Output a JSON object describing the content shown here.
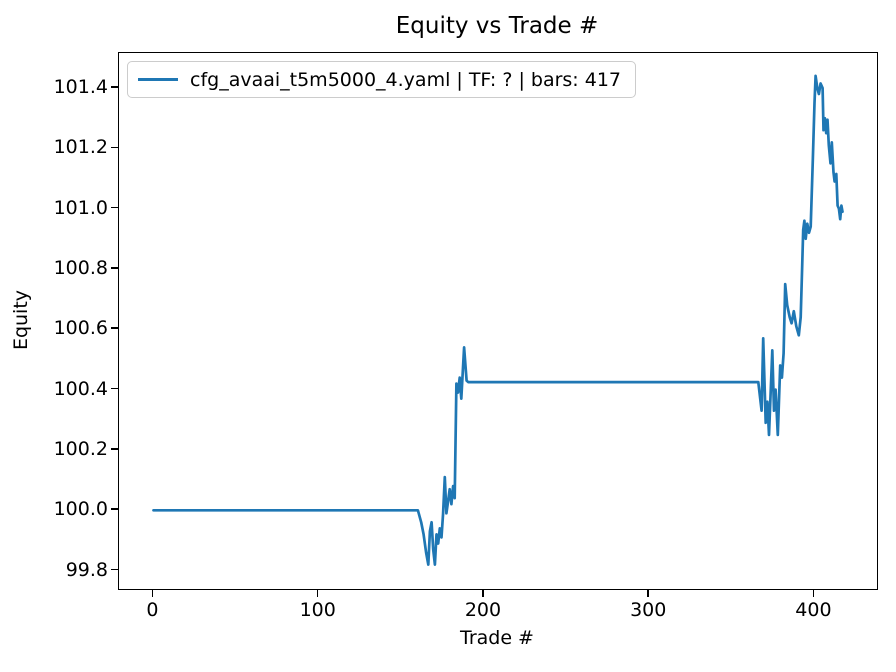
{
  "chart_data": {
    "type": "line",
    "title": "Equity vs Trade #",
    "xlabel": "Trade #",
    "ylabel": "Equity",
    "legend": [
      "cfg_avaai_t5m5000_4.yaml | TF: ? | bars: 417"
    ],
    "legend_position": "upper left",
    "grid": false,
    "line_color": "#1f77b4",
    "xlim": [
      -20.85,
      437.85
    ],
    "ylim": [
      99.739,
      101.516
    ],
    "xticks": [
      0,
      100,
      200,
      300,
      400
    ],
    "xtick_labels": [
      "0",
      "100",
      "200",
      "300",
      "400"
    ],
    "yticks": [
      99.8,
      100.0,
      100.2,
      100.4,
      100.6,
      100.8,
      101.0,
      101.2,
      101.4
    ],
    "ytick_labels": [
      "99.8",
      "100.0",
      "100.2",
      "100.4",
      "100.6",
      "100.8",
      "101.0",
      "101.2",
      "101.4"
    ],
    "series": [
      {
        "name": "cfg_avaai_t5m5000_4.yaml | TF: ? | bars: 417",
        "color": "#1f77b4",
        "points": [
          [
            0,
            100.0
          ],
          [
            160,
            100.0
          ],
          [
            162,
            99.96
          ],
          [
            163.5,
            99.92
          ],
          [
            165,
            99.86
          ],
          [
            166.3,
            99.82
          ],
          [
            167.3,
            99.93
          ],
          [
            168.3,
            99.96
          ],
          [
            169.3,
            99.87
          ],
          [
            170.3,
            99.82
          ],
          [
            171.3,
            99.92
          ],
          [
            172.3,
            99.89
          ],
          [
            173.3,
            99.94
          ],
          [
            174.3,
            99.91
          ],
          [
            175.3,
            99.99
          ],
          [
            176.3,
            100.11
          ],
          [
            177.3,
            99.99
          ],
          [
            178.3,
            100.03
          ],
          [
            179.3,
            100.07
          ],
          [
            180.3,
            100.02
          ],
          [
            181.3,
            100.08
          ],
          [
            182.3,
            100.04
          ],
          [
            183.3,
            100.42
          ],
          [
            184.3,
            100.39
          ],
          [
            185.3,
            100.44
          ],
          [
            186.3,
            100.37
          ],
          [
            188,
            100.54
          ],
          [
            189.5,
            100.43
          ],
          [
            190.5,
            100.425
          ],
          [
            366,
            100.425
          ],
          [
            368,
            100.33
          ],
          [
            369,
            100.57
          ],
          [
            370.5,
            100.29
          ],
          [
            371.5,
            100.36
          ],
          [
            372.5,
            100.25
          ],
          [
            374.5,
            100.53
          ],
          [
            375.5,
            100.33
          ],
          [
            376.5,
            100.4
          ],
          [
            377.8,
            100.25
          ],
          [
            379.3,
            100.48
          ],
          [
            380.3,
            100.44
          ],
          [
            381.3,
            100.52
          ],
          [
            382.3,
            100.75
          ],
          [
            383.5,
            100.68
          ],
          [
            385,
            100.64
          ],
          [
            386.2,
            100.62
          ],
          [
            387.5,
            100.66
          ],
          [
            389,
            100.61
          ],
          [
            390.5,
            100.58
          ],
          [
            391.7,
            100.64
          ],
          [
            392.5,
            100.8
          ],
          [
            393.2,
            100.93
          ],
          [
            393.9,
            100.96
          ],
          [
            394.7,
            100.9
          ],
          [
            395.7,
            100.95
          ],
          [
            396.7,
            100.92
          ],
          [
            397.7,
            100.94
          ],
          [
            399,
            101.16
          ],
          [
            400,
            101.35
          ],
          [
            400.7,
            101.44
          ],
          [
            401.7,
            101.4
          ],
          [
            402.7,
            101.38
          ],
          [
            403.7,
            101.415
          ],
          [
            404.9,
            101.4
          ],
          [
            405.5,
            101.26
          ],
          [
            406.3,
            101.3
          ],
          [
            407.1,
            101.25
          ],
          [
            407.9,
            101.295
          ],
          [
            408.7,
            101.21
          ],
          [
            409.7,
            101.15
          ],
          [
            410.5,
            101.22
          ],
          [
            411.5,
            101.12
          ],
          [
            412.2,
            101.09
          ],
          [
            413.2,
            101.115
          ],
          [
            414,
            101.01
          ],
          [
            414.8,
            101.0
          ],
          [
            415.6,
            100.965
          ],
          [
            416.3,
            101.01
          ],
          [
            417,
            100.99
          ]
        ]
      }
    ]
  }
}
